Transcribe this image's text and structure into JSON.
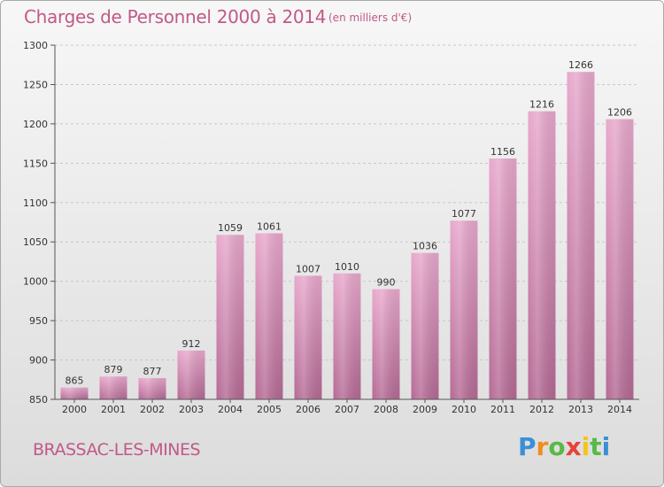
{
  "title": "Charges de Personnel 2000 à 2014",
  "subtitle": "(en milliers d'€)",
  "commune": "BRASSAC-LES-MINES",
  "logo": {
    "letters": [
      "P",
      "r",
      "o",
      "x",
      "i",
      "t",
      "i"
    ]
  },
  "colors": {
    "bar_top": "#e8a8cc",
    "bar_bottom": "#b56a95",
    "title": "#c05a86"
  },
  "chart_data": {
    "type": "bar",
    "categories": [
      "2000",
      "2001",
      "2002",
      "2003",
      "2004",
      "2005",
      "2006",
      "2007",
      "2008",
      "2009",
      "2010",
      "2011",
      "2012",
      "2013",
      "2014"
    ],
    "values": [
      865,
      879,
      877,
      912,
      1059,
      1061,
      1007,
      1010,
      990,
      1036,
      1077,
      1156,
      1216,
      1266,
      1206
    ],
    "ylim": [
      850,
      1300
    ],
    "yticks": [
      850,
      900,
      950,
      1000,
      1050,
      1100,
      1150,
      1200,
      1250,
      1300
    ],
    "grid": true,
    "xlabel": "",
    "ylabel": ""
  }
}
